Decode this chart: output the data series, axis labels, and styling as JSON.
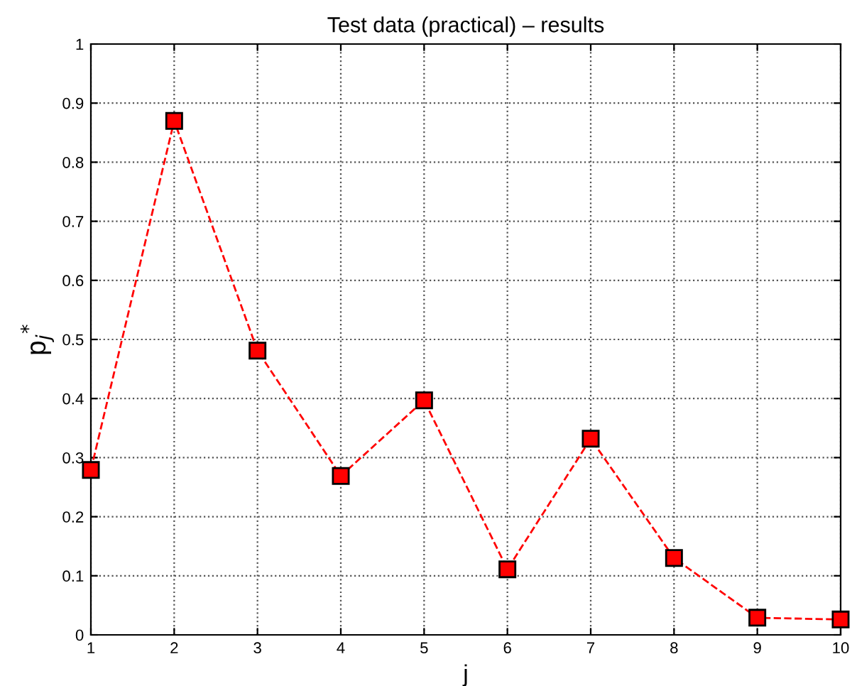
{
  "chart_data": {
    "type": "line",
    "title": "Test data (practical) – results",
    "xlabel": "j",
    "ylabel": "p$_{j}$$^{*}$",
    "x": [
      1,
      2,
      3,
      4,
      5,
      6,
      7,
      8,
      9,
      10
    ],
    "series": [
      {
        "color": "#ff0000",
        "values": [
          0.279,
          0.87,
          0.481,
          0.269,
          0.397,
          0.111,
          0.332,
          0.13,
          0.029,
          0.026
        ]
      }
    ],
    "xlim": [
      1,
      10
    ],
    "xticks": [
      1,
      2,
      3,
      4,
      5,
      6,
      7,
      8,
      9,
      10
    ],
    "ylim": [
      0,
      1
    ],
    "yticks": [
      0,
      0.1,
      0.2,
      0.3,
      0.4,
      0.5,
      0.6,
      0.7,
      0.8,
      0.9,
      1
    ],
    "grid": true,
    "marker": "square",
    "line_style": "dashed",
    "legend": false
  }
}
